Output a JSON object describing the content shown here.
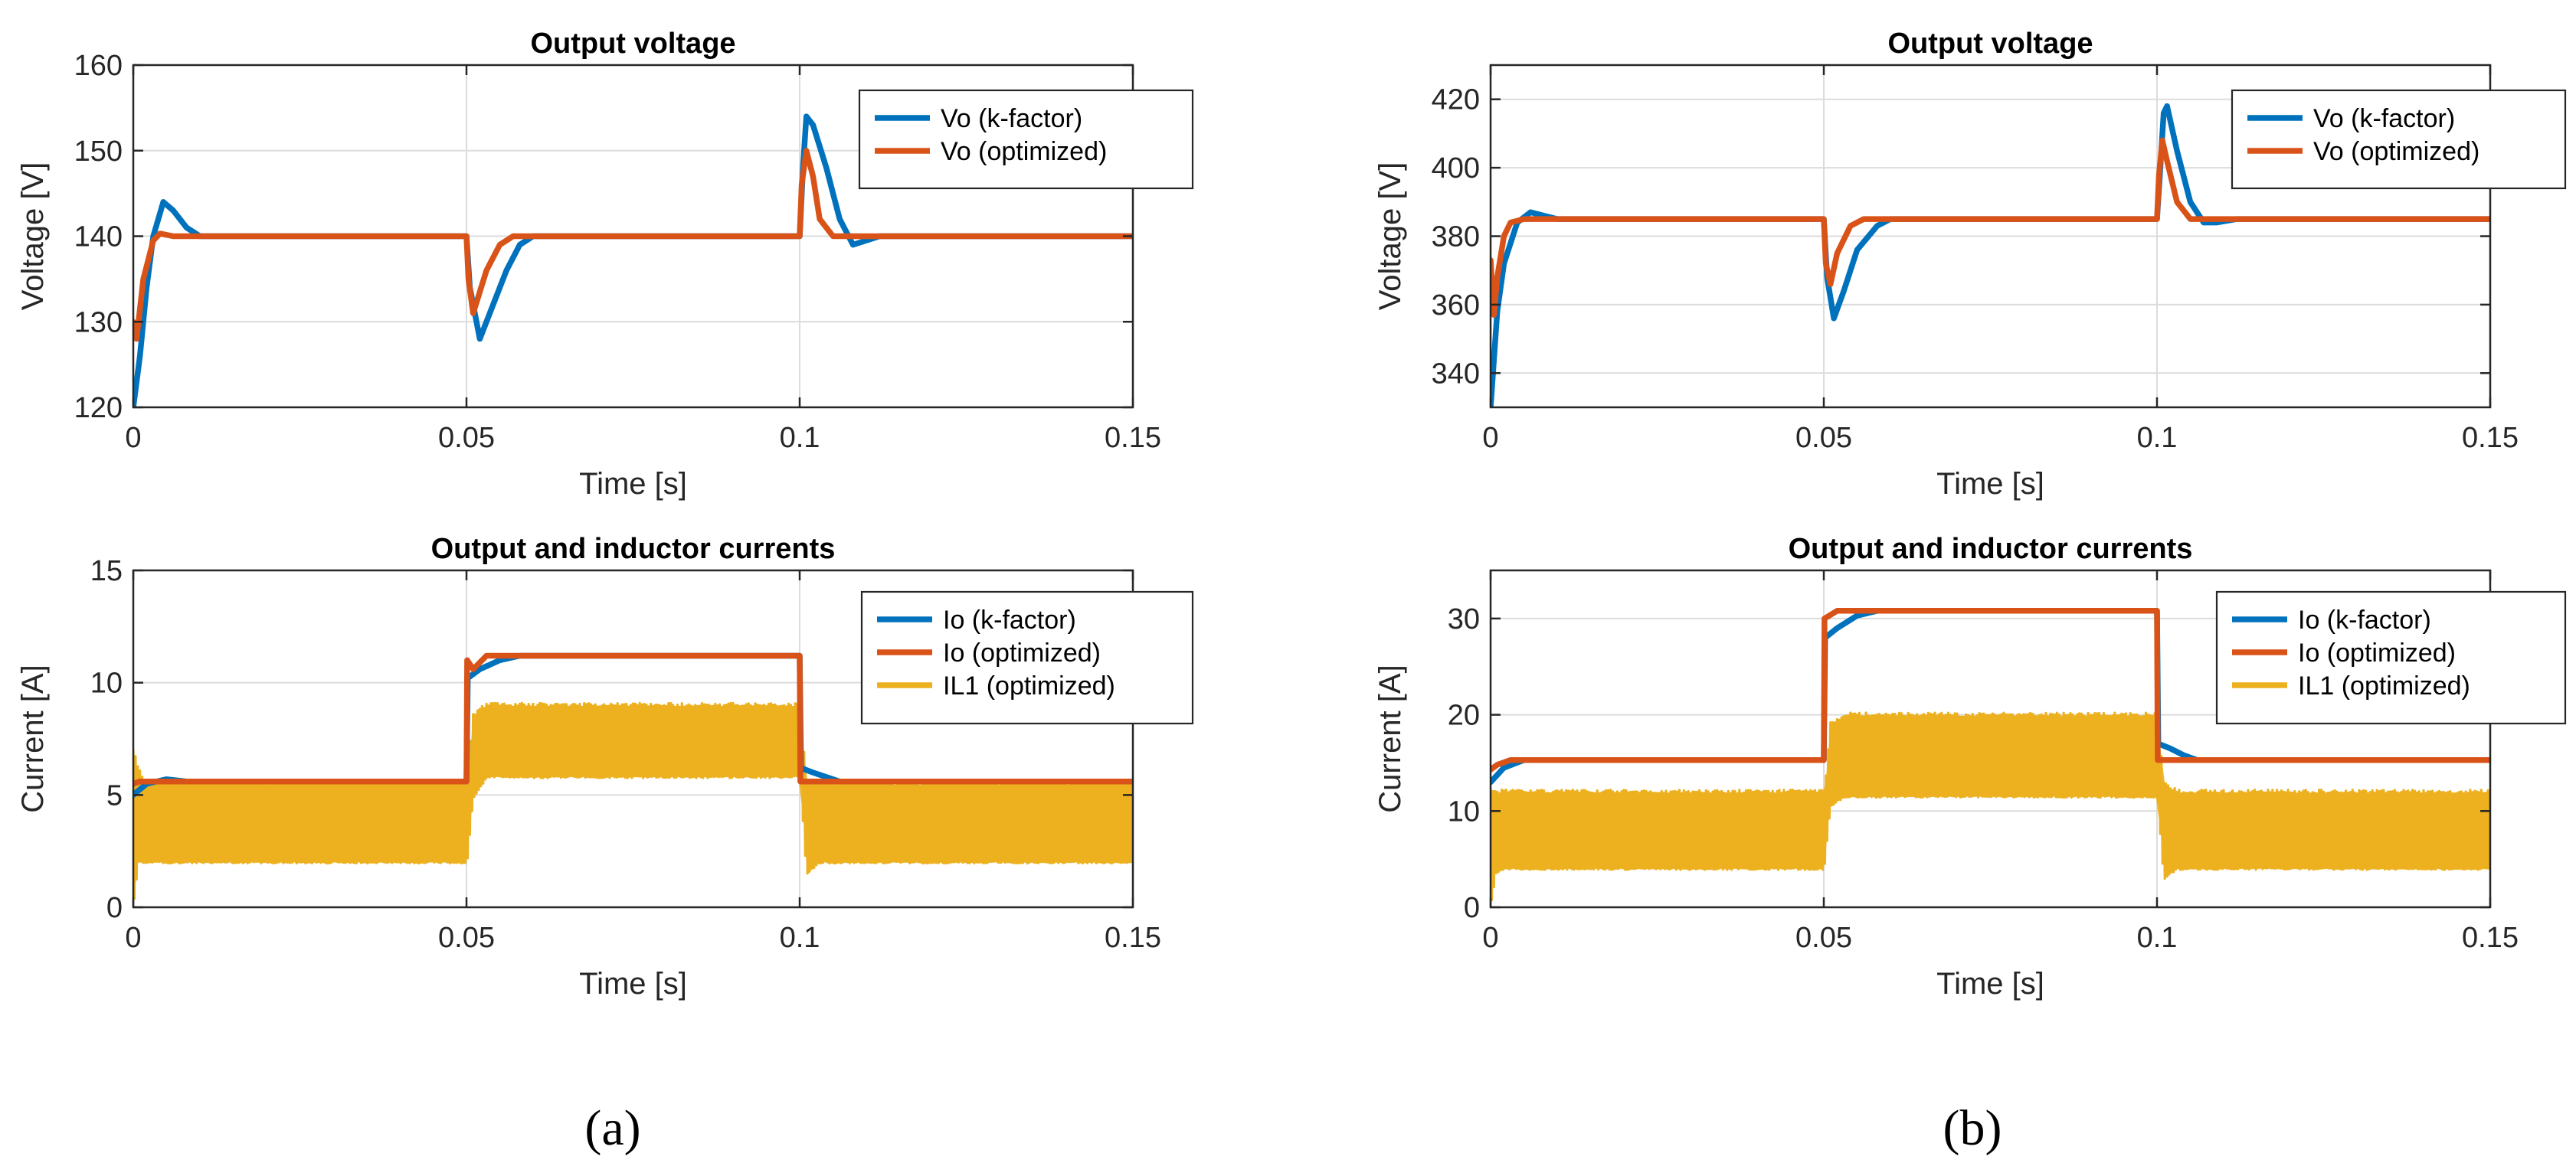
{
  "colors": {
    "blue": "#0072BD",
    "orange": "#D95319",
    "yellow": "#EDB120",
    "grid": "#dcdcdc",
    "axis": "#262626"
  },
  "chart_data": [
    {
      "type": "line",
      "panel": "(a)",
      "title": "Output voltage",
      "xlabel": "Time [s]",
      "ylabel": "Voltage [V]",
      "xlim": [
        0,
        0.15
      ],
      "ylim": [
        120,
        160
      ],
      "xticks": [
        0,
        0.05,
        0.1,
        0.15
      ],
      "xtick_labels": [
        "0",
        "0.05",
        "0.1",
        "0.15"
      ],
      "yticks": [
        120,
        130,
        140,
        150,
        160
      ],
      "ytick_labels": [
        "120",
        "130",
        "140",
        "150",
        "160"
      ],
      "grid": true,
      "legend_position": "top-right",
      "series": [
        {
          "name": "Vo (k-factor)",
          "color_key": "blue",
          "x": [
            0,
            0.001,
            0.002,
            0.003,
            0.0045,
            0.006,
            0.008,
            0.01,
            0.05,
            0.0505,
            0.052,
            0.054,
            0.056,
            0.058,
            0.06,
            0.1,
            0.1005,
            0.101,
            0.102,
            0.104,
            0.106,
            0.108,
            0.11,
            0.112,
            0.15
          ],
          "y": [
            120,
            126,
            134,
            140,
            144,
            143,
            141,
            140,
            140,
            134,
            128,
            132,
            136,
            139,
            140,
            140,
            148,
            154,
            153,
            148,
            142,
            139,
            139.5,
            140,
            140
          ]
        },
        {
          "name": "Vo (optimized)",
          "color_key": "orange",
          "x": [
            0,
            0.0005,
            0.0015,
            0.003,
            0.004,
            0.006,
            0.01,
            0.05,
            0.0503,
            0.051,
            0.053,
            0.055,
            0.057,
            0.1,
            0.1003,
            0.101,
            0.102,
            0.103,
            0.105,
            0.107,
            0.15
          ],
          "y": [
            130,
            128,
            135,
            139.5,
            140.3,
            140,
            140,
            140,
            135,
            131,
            136,
            139,
            140,
            140,
            146,
            150,
            147,
            142,
            140,
            140,
            140
          ]
        }
      ]
    },
    {
      "type": "line",
      "panel": "(a)",
      "title": "Output and inductor currents",
      "xlabel": "Time [s]",
      "ylabel": "Current [A]",
      "xlim": [
        0,
        0.15
      ],
      "ylim": [
        0,
        15
      ],
      "xticks": [
        0,
        0.05,
        0.1,
        0.15
      ],
      "xtick_labels": [
        "0",
        "0.05",
        "0.1",
        "0.15"
      ],
      "yticks": [
        0,
        5,
        10,
        15
      ],
      "ytick_labels": [
        "0",
        "5",
        "10",
        "15"
      ],
      "grid": true,
      "legend_position": "top-right",
      "series": [
        {
          "name": "Io (k-factor)",
          "color_key": "blue",
          "x": [
            0,
            0.002,
            0.005,
            0.008,
            0.05,
            0.0502,
            0.052,
            0.055,
            0.058,
            0.1,
            0.1002,
            0.102,
            0.104,
            0.106,
            0.15
          ],
          "y": [
            5.0,
            5.5,
            5.7,
            5.6,
            5.6,
            10.2,
            10.6,
            11.0,
            11.2,
            11.2,
            6.2,
            6.0,
            5.8,
            5.6,
            5.6
          ]
        },
        {
          "name": "Io (optimized)",
          "color_key": "orange",
          "x": [
            0,
            0.001,
            0.05,
            0.0501,
            0.051,
            0.053,
            0.1,
            0.1001,
            0.15
          ],
          "y": [
            5.5,
            5.6,
            5.6,
            11.0,
            10.6,
            11.2,
            11.2,
            5.6,
            5.6
          ]
        },
        {
          "name": "IL1 (optimized)",
          "color_key": "yellow",
          "band": true,
          "x": [
            0,
            0.0008,
            0.002,
            0.05,
            0.0501,
            0.051,
            0.053,
            0.1,
            0.1001,
            0.101,
            0.103,
            0.15
          ],
          "low": [
            0,
            2.0,
            2.0,
            2.0,
            2.0,
            4.8,
            5.8,
            5.8,
            5.8,
            1.5,
            2.0,
            2.0
          ],
          "high": [
            7.0,
            6.2,
            5.5,
            5.5,
            5.5,
            8.6,
            9.0,
            9.0,
            9.0,
            5.6,
            5.5,
            5.5
          ]
        }
      ]
    },
    {
      "type": "line",
      "panel": "(b)",
      "title": "Output voltage",
      "xlabel": "Time [s]",
      "ylabel": "Voltage [V]",
      "xlim": [
        0,
        0.15
      ],
      "ylim": [
        330,
        430
      ],
      "xticks": [
        0,
        0.05,
        0.1,
        0.15
      ],
      "xtick_labels": [
        "0",
        "0.05",
        "0.1",
        "0.15"
      ],
      "yticks": [
        340,
        360,
        380,
        400,
        420
      ],
      "ytick_labels": [
        "340",
        "360",
        "380",
        "400",
        "420"
      ],
      "grid": true,
      "legend_position": "top-right",
      "series": [
        {
          "name": "Vo (k-factor)",
          "color_key": "blue",
          "x": [
            0,
            0.001,
            0.002,
            0.004,
            0.006,
            0.008,
            0.01,
            0.05,
            0.0505,
            0.0515,
            0.053,
            0.055,
            0.058,
            0.06,
            0.1,
            0.1005,
            0.101,
            0.1015,
            0.103,
            0.105,
            0.107,
            0.109,
            0.112,
            0.15
          ],
          "y": [
            330,
            358,
            372,
            384,
            387,
            386,
            385,
            385,
            368,
            356,
            364,
            376,
            383,
            385,
            385,
            400,
            416,
            418,
            405,
            390,
            384,
            384,
            385,
            385
          ]
        },
        {
          "name": "Vo (optimized)",
          "color_key": "orange",
          "x": [
            0,
            0.0005,
            0.001,
            0.002,
            0.003,
            0.005,
            0.05,
            0.0503,
            0.051,
            0.052,
            0.054,
            0.056,
            0.1,
            0.1003,
            0.1008,
            0.1015,
            0.103,
            0.105,
            0.15
          ],
          "y": [
            373,
            357,
            368,
            380,
            384,
            385,
            385,
            372,
            366,
            375,
            383,
            385,
            385,
            398,
            408,
            402,
            390,
            385,
            385
          ]
        }
      ]
    },
    {
      "type": "line",
      "panel": "(b)",
      "title": "Output and inductor currents",
      "xlabel": "Time [s]",
      "ylabel": "Current [A]",
      "xlim": [
        0,
        0.15
      ],
      "ylim": [
        0,
        35
      ],
      "xticks": [
        0,
        0.05,
        0.1,
        0.15
      ],
      "xtick_labels": [
        "0",
        "0.05",
        "0.1",
        "0.15"
      ],
      "yticks": [
        0,
        10,
        20,
        30
      ],
      "ytick_labels": [
        "0",
        "10",
        "20",
        "30"
      ],
      "grid": true,
      "legend_position": "top-right",
      "series": [
        {
          "name": "Io (k-factor)",
          "color_key": "blue",
          "x": [
            0,
            0.002,
            0.005,
            0.008,
            0.05,
            0.0502,
            0.052,
            0.055,
            0.058,
            0.1,
            0.1002,
            0.102,
            0.104,
            0.106,
            0.15
          ],
          "y": [
            13.0,
            14.5,
            15.3,
            15.3,
            15.3,
            28.0,
            29.0,
            30.3,
            30.8,
            30.8,
            17.0,
            16.5,
            15.8,
            15.3,
            15.3
          ]
        },
        {
          "name": "Io (optimized)",
          "color_key": "orange",
          "x": [
            0,
            0.001,
            0.003,
            0.05,
            0.0501,
            0.052,
            0.1,
            0.1001,
            0.15
          ],
          "y": [
            14.3,
            14.8,
            15.3,
            15.3,
            30.0,
            30.8,
            30.8,
            15.3,
            15.3
          ]
        },
        {
          "name": "IL1 (optimized)",
          "color_key": "yellow",
          "band": true,
          "x": [
            0,
            0.0008,
            0.002,
            0.05,
            0.0501,
            0.051,
            0.053,
            0.1,
            0.1001,
            0.101,
            0.103,
            0.15
          ],
          "low": [
            0,
            3.5,
            4.0,
            4.0,
            4.0,
            10.5,
            11.5,
            11.5,
            11.5,
            3.0,
            4.0,
            4.0
          ],
          "high": [
            12.0,
            12.0,
            12.0,
            12.0,
            12.0,
            19.0,
            20.0,
            20.0,
            20.0,
            13.0,
            12.0,
            12.0
          ]
        }
      ]
    }
  ]
}
